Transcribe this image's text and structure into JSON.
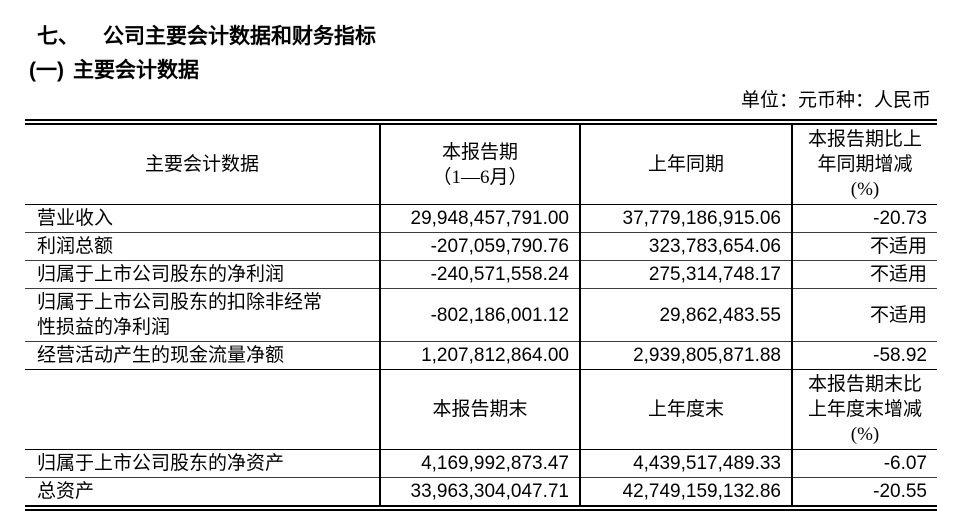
{
  "document": {
    "section_number": "七、",
    "section_title": "公司主要会计数据和财务指标",
    "subsection_number": "(一)",
    "subsection_title": "主要会计数据",
    "unit_note": "单位：元币种：人民币"
  },
  "table": {
    "header_period": {
      "metric_label": "主要会计数据",
      "current_lines": [
        "本报告期",
        "（1—6月）"
      ],
      "prior_label": "上年同期",
      "change_lines": [
        "本报告期比上",
        "年同期增减",
        "(%)"
      ]
    },
    "period_rows": [
      {
        "label": "营业收入",
        "current": "29,948,457,791.00",
        "prior": "37,779,186,915.06",
        "change": "-20.73"
      },
      {
        "label": "利润总额",
        "current": "-207,059,790.76",
        "prior": "323,783,654.06",
        "change": "不适用"
      },
      {
        "label": "归属于上市公司股东的净利润",
        "current": "-240,571,558.24",
        "prior": "275,314,748.17",
        "change": "不适用"
      },
      {
        "label": "归属于上市公司股东的扣除非经常性损益的净利润",
        "current": "-802,186,001.12",
        "prior": "29,862,483.55",
        "change": "不适用"
      },
      {
        "label": "经营活动产生的现金流量净额",
        "current": "1,207,812,864.00",
        "prior": "2,939,805,871.88",
        "change": "-58.92"
      }
    ],
    "header_balance": {
      "metric_label": "",
      "current_label": "本报告期末",
      "prior_label": "上年度末",
      "change_lines": [
        "本报告期末比",
        "上年度末增减",
        "(%)"
      ]
    },
    "balance_rows": [
      {
        "label": "归属于上市公司股东的净资产",
        "current": "4,169,992,873.47",
        "prior": "4,439,517,489.33",
        "change": "-6.07"
      },
      {
        "label": "总资产",
        "current": "33,963,304,047.71",
        "prior": "42,749,159,132.86",
        "change": "-20.55"
      }
    ]
  }
}
